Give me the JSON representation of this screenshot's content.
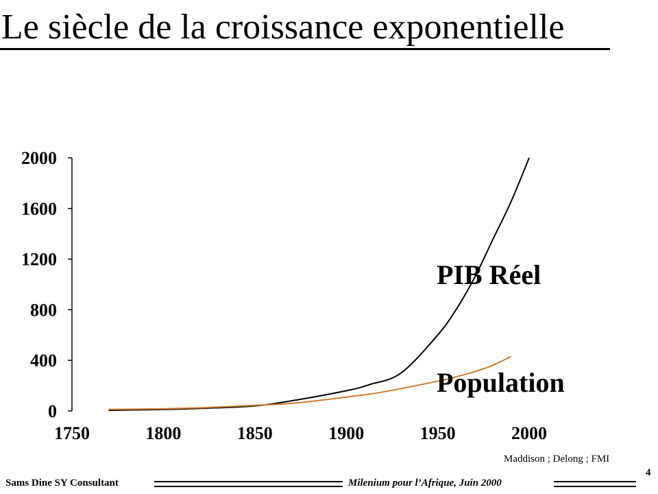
{
  "title": "Le siècle de la croissance exponentielle",
  "source": "Maddison ; Delong ; FMI",
  "page_number": "4",
  "footer": {
    "left": "Sams Dine SY Consultant",
    "right": "Milenium pour l’Afrique, Juin 2000"
  },
  "colors": {
    "pib": "#000000",
    "population": "#d07a2a"
  },
  "chart_data": {
    "type": "line",
    "title": "",
    "xlabel": "",
    "ylabel": "",
    "xlim": [
      1750,
      2000
    ],
    "ylim": [
      0,
      2000
    ],
    "x_ticks": [
      1750,
      1800,
      1850,
      1900,
      1950,
      2000
    ],
    "y_ticks": [
      0,
      400,
      800,
      1200,
      1600,
      2000
    ],
    "grid": false,
    "series": [
      {
        "name": "PIB Réel",
        "color": "#000000",
        "x": [
          1770,
          1800,
          1820,
          1850,
          1870,
          1900,
          1913,
          1930,
          1950,
          1960,
          1970,
          1980,
          1990,
          2000
        ],
        "values": [
          5,
          12,
          20,
          40,
          80,
          160,
          210,
          300,
          600,
          800,
          1050,
          1350,
          1650,
          2000
        ]
      },
      {
        "name": "Population",
        "color": "#d07a2a",
        "x": [
          1770,
          1800,
          1820,
          1850,
          1870,
          1900,
          1920,
          1950,
          1960,
          1970,
          1980,
          1990
        ],
        "values": [
          12,
          18,
          25,
          45,
          60,
          110,
          150,
          235,
          270,
          310,
          360,
          430
        ]
      }
    ]
  }
}
